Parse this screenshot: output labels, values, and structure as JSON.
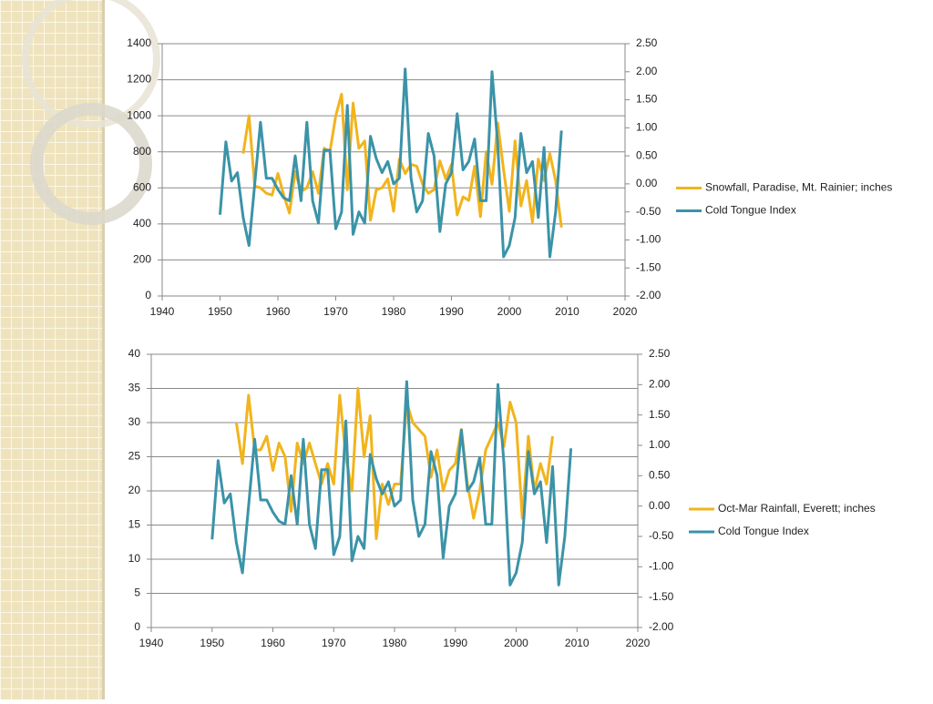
{
  "chart_data": [
    {
      "type": "line",
      "x": [
        1950,
        1951,
        1952,
        1953,
        1954,
        1955,
        1956,
        1957,
        1958,
        1959,
        1960,
        1961,
        1962,
        1963,
        1964,
        1965,
        1966,
        1967,
        1968,
        1969,
        1970,
        1971,
        1972,
        1973,
        1974,
        1975,
        1976,
        1977,
        1978,
        1979,
        1980,
        1981,
        1982,
        1983,
        1984,
        1985,
        1986,
        1987,
        1988,
        1989,
        1990,
        1991,
        1992,
        1993,
        1994,
        1995,
        1996,
        1997,
        1998,
        1999,
        2000,
        2001,
        2002,
        2003,
        2004,
        2005,
        2006,
        2007,
        2008,
        2009
      ],
      "series": [
        {
          "name": "Snowfall, Paradise, Mt. Rainier; inches",
          "color": "#f2b41c",
          "values": [
            null,
            null,
            null,
            null,
            790,
            1000,
            610,
            600,
            570,
            560,
            680,
            560,
            460,
            690,
            580,
            600,
            690,
            570,
            820,
            800,
            1000,
            1120,
            590,
            1070,
            820,
            860,
            420,
            590,
            600,
            650,
            470,
            760,
            680,
            730,
            720,
            620,
            570,
            590,
            750,
            650,
            730,
            450,
            550,
            530,
            720,
            440,
            800,
            620,
            960,
            700,
            470,
            860,
            500,
            640,
            410,
            760,
            640,
            790,
            640,
            380
          ]
        },
        {
          "name": "Cold Tongue Index",
          "color": "#3b93a8",
          "axis": "y2",
          "values": [
            -0.55,
            0.75,
            0.05,
            0.2,
            -0.6,
            -1.1,
            0.0,
            1.1,
            0.1,
            0.1,
            -0.1,
            -0.25,
            -0.3,
            0.5,
            -0.3,
            1.1,
            -0.3,
            -0.7,
            0.6,
            0.6,
            -0.8,
            -0.5,
            1.4,
            -0.9,
            -0.5,
            -0.7,
            0.85,
            0.45,
            0.2,
            0.4,
            0.0,
            0.1,
            2.05,
            0.1,
            -0.5,
            -0.3,
            0.9,
            0.5,
            -0.85,
            0.0,
            0.2,
            1.25,
            0.25,
            0.4,
            0.8,
            -0.3,
            -0.3,
            2.0,
            0.7,
            -1.3,
            -1.1,
            -0.6,
            0.9,
            0.2,
            0.4,
            -0.6,
            0.65,
            -1.3,
            -0.5,
            0.95
          ]
        }
      ],
      "xlim": [
        1940,
        2020
      ],
      "xticks": [
        1940,
        1950,
        1960,
        1970,
        1980,
        1990,
        2000,
        2010,
        2020
      ],
      "ylim": [
        0,
        1400
      ],
      "yticks": [
        0,
        200,
        400,
        600,
        800,
        1000,
        1200,
        1400
      ],
      "y2lim": [
        -2,
        2.5
      ],
      "y2ticks": [
        {
          "value": -2,
          "label": "-2.00"
        },
        {
          "value": -1.5,
          "label": "-1.50"
        },
        {
          "value": -1,
          "label": "-1.00"
        },
        {
          "value": -0.5,
          "label": "-0.50"
        },
        {
          "value": 0,
          "label": "0.00"
        },
        {
          "value": 0.5,
          "label": "0.50"
        },
        {
          "value": 1,
          "label": "1.00"
        },
        {
          "value": 1.5,
          "label": "1.50"
        },
        {
          "value": 2,
          "label": "2.00"
        },
        {
          "value": 2.5,
          "label": "2.50"
        }
      ],
      "grid": true,
      "legend": "right"
    },
    {
      "type": "line",
      "x": [
        1950,
        1951,
        1952,
        1953,
        1954,
        1955,
        1956,
        1957,
        1958,
        1959,
        1960,
        1961,
        1962,
        1963,
        1964,
        1965,
        1966,
        1967,
        1968,
        1969,
        1970,
        1971,
        1972,
        1973,
        1974,
        1975,
        1976,
        1977,
        1978,
        1979,
        1980,
        1981,
        1982,
        1983,
        1984,
        1985,
        1986,
        1987,
        1988,
        1989,
        1990,
        1991,
        1992,
        1993,
        1994,
        1995,
        1996,
        1997,
        1998,
        1999,
        2000,
        2001,
        2002,
        2003,
        2004,
        2005,
        2006,
        2007,
        2008,
        2009
      ],
      "series": [
        {
          "name": "Oct-Mar Rainfall, Everett; inches",
          "color": "#f2b41c",
          "values": [
            null,
            null,
            null,
            null,
            30,
            24,
            34,
            26,
            26,
            28,
            23,
            27,
            25,
            17,
            27,
            24,
            27,
            24,
            21,
            24,
            21,
            34,
            25,
            20,
            35,
            25,
            31,
            13,
            21,
            18,
            21,
            21,
            33,
            30,
            29,
            28,
            22,
            26,
            20,
            23,
            24,
            29,
            21,
            16,
            20,
            26,
            28,
            30,
            26.5,
            33,
            30,
            16,
            28,
            20,
            24,
            21,
            28,
            null,
            null,
            null
          ]
        },
        {
          "name": "Cold Tongue Index",
          "color": "#3b93a8",
          "axis": "y2",
          "values": [
            -0.55,
            0.75,
            0.05,
            0.2,
            -0.6,
            -1.1,
            0.0,
            1.1,
            0.1,
            0.1,
            -0.1,
            -0.25,
            -0.3,
            0.5,
            -0.3,
            1.1,
            -0.3,
            -0.7,
            0.6,
            0.6,
            -0.8,
            -0.5,
            1.4,
            -0.9,
            -0.5,
            -0.7,
            0.85,
            0.45,
            0.2,
            0.4,
            0.0,
            0.1,
            2.05,
            0.1,
            -0.5,
            -0.3,
            0.9,
            0.5,
            -0.85,
            0.0,
            0.2,
            1.25,
            0.25,
            0.4,
            0.8,
            -0.3,
            -0.3,
            2.0,
            0.7,
            -1.3,
            -1.1,
            -0.6,
            0.9,
            0.2,
            0.4,
            -0.6,
            0.65,
            -1.3,
            -0.5,
            0.95
          ]
        }
      ],
      "xlim": [
        1940,
        2020
      ],
      "xticks": [
        1940,
        1950,
        1960,
        1970,
        1980,
        1990,
        2000,
        2010,
        2020
      ],
      "ylim": [
        0,
        40
      ],
      "yticks": [
        0,
        5,
        10,
        15,
        20,
        25,
        30,
        35,
        40
      ],
      "y2lim": [
        -2,
        2.5
      ],
      "y2ticks": [
        {
          "value": -2,
          "label": "-2.00"
        },
        {
          "value": -1.5,
          "label": "-1.50"
        },
        {
          "value": -1,
          "label": "-1.00"
        },
        {
          "value": -0.5,
          "label": "-0.50"
        },
        {
          "value": 0,
          "label": "0.00"
        },
        {
          "value": 0.5,
          "label": "0.50"
        },
        {
          "value": 1,
          "label": "1.00"
        },
        {
          "value": 1.5,
          "label": "1.50"
        },
        {
          "value": 2,
          "label": "2.00"
        },
        {
          "value": 2.5,
          "label": "2.50"
        }
      ],
      "grid": true,
      "legend": "right"
    }
  ]
}
